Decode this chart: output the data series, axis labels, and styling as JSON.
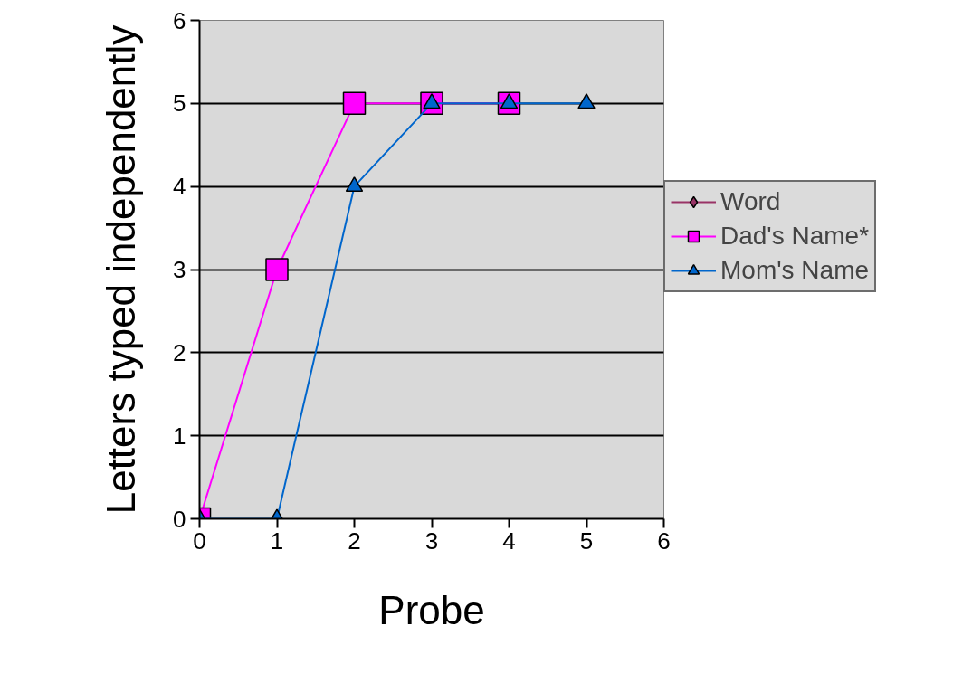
{
  "chart_data": {
    "type": "line",
    "xlabel": "Probe",
    "ylabel": "Letters typed independently",
    "xlim": [
      0,
      6
    ],
    "xticks": [
      0,
      1,
      2,
      3,
      4,
      5,
      6
    ],
    "ylim": [
      0,
      6
    ],
    "yticks": [
      0,
      1,
      2,
      3,
      4,
      5,
      6
    ],
    "grid": "y",
    "legend": "right",
    "series": [
      {
        "name": "Word",
        "color": "#993366",
        "marker": "diamond"
      },
      {
        "name": "Dad's Name*",
        "color": "#ff00ff",
        "marker": "square",
        "x": [
          0,
          1,
          2,
          3,
          4
        ],
        "values": [
          0,
          3,
          5,
          5,
          5
        ]
      },
      {
        "name": "Mom's Name",
        "color": "#0066cc",
        "marker": "triangle",
        "x": [
          0,
          1,
          2,
          3,
          4,
          5
        ],
        "values": [
          0,
          0,
          4,
          5,
          5,
          5
        ]
      }
    ]
  }
}
